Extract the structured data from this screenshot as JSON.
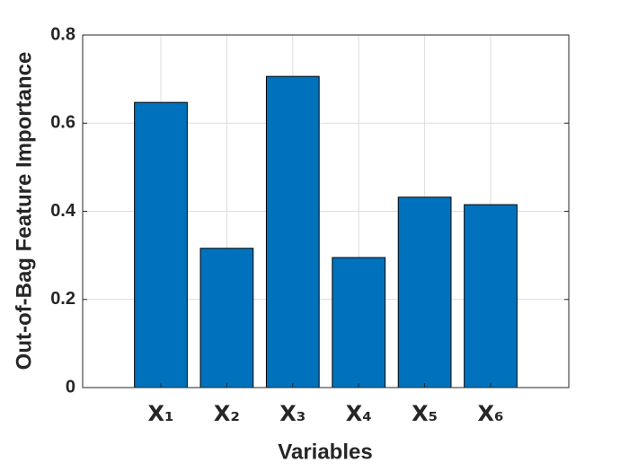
{
  "chart_data": {
    "type": "bar",
    "x_label": "Variables",
    "y_label": "Out-of-Bag Feature Importance",
    "categories": [
      "X₁",
      "X₂",
      "X₃",
      "X₄",
      "X₅",
      "X₆"
    ],
    "values": [
      0.647,
      0.316,
      0.706,
      0.295,
      0.432,
      0.415
    ],
    "color": "#0072bd",
    "ylim": [
      0,
      0.8
    ],
    "yticks": [
      0,
      0.2,
      0.4,
      0.6,
      0.8
    ],
    "grid": true
  }
}
